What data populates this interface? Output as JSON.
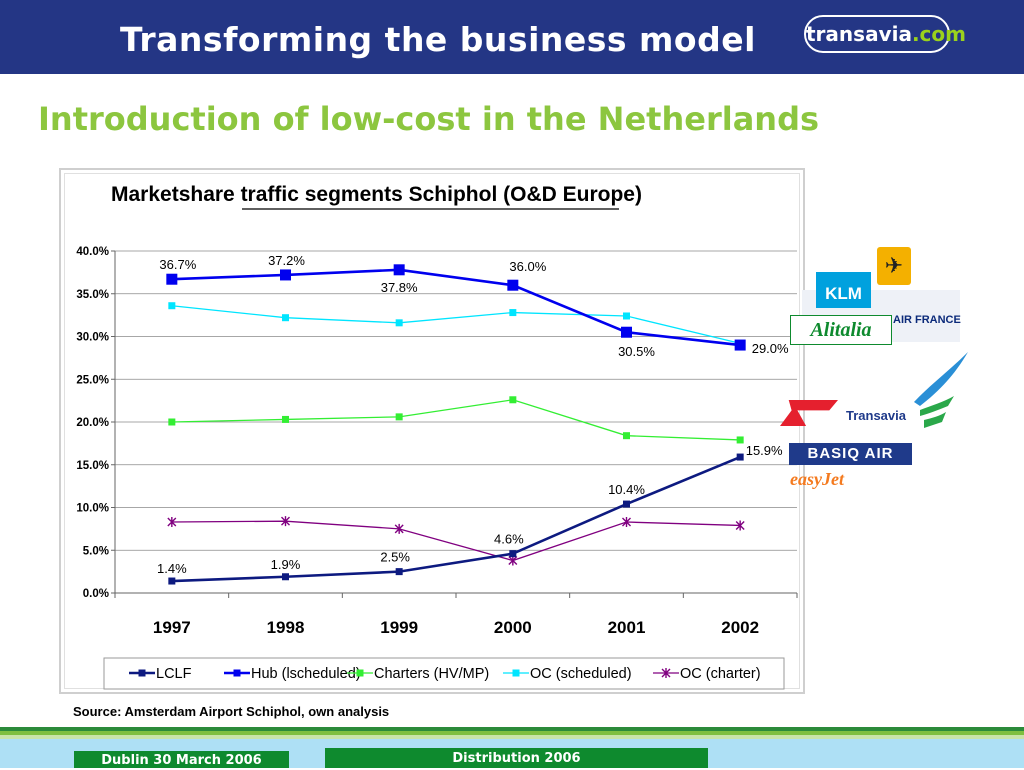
{
  "header": {
    "title": "Transforming the business model",
    "brand": "transavia",
    "brand_suffix": ".com"
  },
  "subtitle": "Introduction of low-cost in the Netherlands",
  "source": "Source: Amsterdam Airport Schiphol, own analysis",
  "footer": {
    "left": "Dublin 30 March 2006",
    "center": "Distribution 2006"
  },
  "logos": {
    "klm": "KLM",
    "airfrance": "AIR FRANCE",
    "alitalia": "Alitalia",
    "transavia": "Transavia",
    "basiq": "BASIQ AIR",
    "easyjet": "easyJet",
    "lufthansa_icon": "crane-icon"
  },
  "chart_data": {
    "type": "line",
    "title": "Marketshare traffic segments Schiphol (O&D Europe)",
    "categories": [
      "1997",
      "1998",
      "1999",
      "2000",
      "2001",
      "2002"
    ],
    "ylim": [
      0,
      40
    ],
    "yticks": [
      "0.0%",
      "5.0%",
      "10.0%",
      "15.0%",
      "20.0%",
      "25.0%",
      "30.0%",
      "35.0%",
      "40.0%"
    ],
    "grid": true,
    "legend_position": "bottom",
    "series": [
      {
        "name": "LCLF",
        "color": "#0d1a80",
        "marker": "square-small",
        "values": [
          1.4,
          1.9,
          2.5,
          4.6,
          10.4,
          15.9
        ],
        "labels": [
          "1.4%",
          "1.9%",
          "2.5%",
          "4.6%",
          "10.4%",
          "15.9%"
        ]
      },
      {
        "name": "Hub (lscheduled)",
        "color": "#0000ee",
        "marker": "square-large",
        "values": [
          36.7,
          37.2,
          37.8,
          36.0,
          30.5,
          29.0
        ],
        "labels": [
          "36.7%",
          "37.2%",
          "37.8%",
          "36.0%",
          "30.5%",
          "29.0%"
        ]
      },
      {
        "name": "Charters (HV/MP)",
        "color": "#33ee33",
        "marker": "square-small",
        "values": [
          20.0,
          20.3,
          20.6,
          22.6,
          18.4,
          17.9
        ]
      },
      {
        "name": "OC (scheduled)",
        "color": "#00e5ff",
        "marker": "square-small",
        "values": [
          33.6,
          32.2,
          31.6,
          32.8,
          32.4,
          29.2
        ]
      },
      {
        "name": "OC (charter)",
        "color": "#800080",
        "marker": "star",
        "values": [
          8.3,
          8.4,
          7.5,
          3.8,
          8.3,
          7.9
        ]
      }
    ]
  }
}
